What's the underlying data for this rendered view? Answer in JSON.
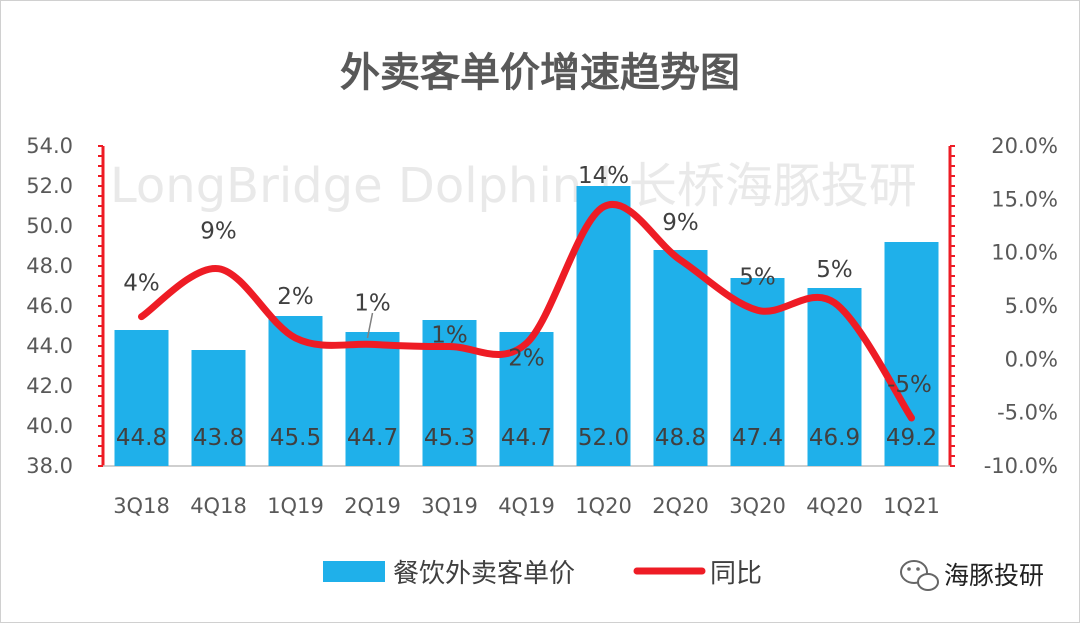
{
  "chart_data": {
    "type": "bar+line",
    "title": "外卖客单价增速趋势图",
    "categories": [
      "3Q18",
      "4Q18",
      "1Q19",
      "2Q19",
      "3Q19",
      "4Q19",
      "1Q20",
      "2Q20",
      "3Q20",
      "4Q20",
      "1Q21"
    ],
    "series": [
      {
        "name": "餐饮外卖客单价",
        "type": "bar",
        "axis": "left",
        "color": "#1fb0ea",
        "values": [
          44.8,
          43.8,
          45.5,
          44.7,
          45.3,
          44.7,
          52.0,
          48.8,
          47.4,
          46.9,
          49.2
        ],
        "labels": [
          "44.8",
          "43.8",
          "45.5",
          "44.7",
          "45.3",
          "44.7",
          "52.0",
          "48.8",
          "47.4",
          "46.9",
          "49.2"
        ]
      },
      {
        "name": "同比",
        "type": "line",
        "axis": "right",
        "color": "#ee1c25",
        "values": [
          4.0,
          8.5,
          2.0,
          1.4,
          1.2,
          1.5,
          14.3,
          9.3,
          4.6,
          5.3,
          -5.5
        ],
        "labels": [
          "4%",
          "9%",
          "2%",
          "1%",
          "1%",
          "2%",
          "14%",
          "9%",
          "5%",
          "5%",
          "-5%"
        ]
      }
    ],
    "left_axis": {
      "min": 38,
      "max": 54,
      "step": 2,
      "ticks": [
        "38.0",
        "40.0",
        "42.0",
        "44.0",
        "46.0",
        "48.0",
        "50.0",
        "52.0",
        "54.0"
      ]
    },
    "right_axis": {
      "min": -10,
      "max": 20,
      "step": 5,
      "ticks": [
        "-10.0%",
        "-5.0%",
        "0.0%",
        "5.0%",
        "10.0%",
        "15.0%",
        "20.0%"
      ]
    },
    "axis_color": "#ee1c25",
    "legend_position": "bottom",
    "watermark": "LongBridge Dolphin | 长桥海豚投研"
  },
  "brand": {
    "name": "海豚投研",
    "icon": "wechat-icon"
  }
}
